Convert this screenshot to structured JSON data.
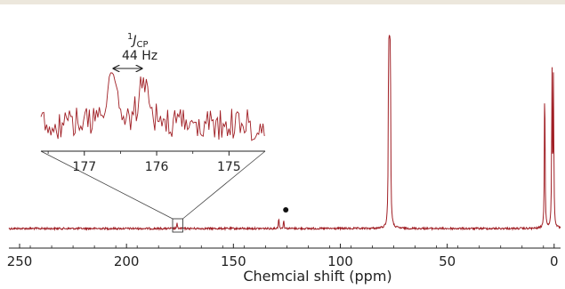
{
  "chart_data": [
    {
      "type": "line",
      "xlabel": "Chemcial shift (ppm)",
      "xlim": [
        255,
        -3
      ],
      "x_ticks": [
        "250",
        "200",
        "150",
        "100",
        "50",
        "0"
      ],
      "x_tick_values": [
        250,
        200,
        150,
        100,
        50,
        0
      ],
      "line_color": "#a01f25",
      "grid": false,
      "series": [
        {
          "peaks": [
            {
              "x": 176.4,
              "height": 0.03
            },
            {
              "x": 128.8,
              "height": 0.07
            },
            {
              "x": 126.5,
              "height": 0.055
            },
            {
              "x": 77.4,
              "height": 1.0
            },
            {
              "x": 77.0,
              "height": 1.0
            },
            {
              "x": 76.6,
              "height": 1.0
            },
            {
              "x": 4.4,
              "height": 0.92
            },
            {
              "x": 1.0,
              "height": 0.95
            },
            {
              "x": 0.3,
              "height": 0.88
            }
          ]
        }
      ],
      "annotations": [
        {
          "type": "marker",
          "symbol": "filled-circle",
          "x": 125.5
        }
      ]
    },
    {
      "type": "line",
      "role": "inset-zoom",
      "xlim": [
        177.6,
        174.5
      ],
      "x_ticks": [
        "177",
        "176",
        "175"
      ],
      "x_tick_values": [
        177,
        176,
        175
      ],
      "zoom_region": [
        177.6,
        174.5
      ],
      "series": [
        {
          "peaks": [
            {
              "x": 176.62,
              "height": 1.0
            },
            {
              "x": 176.18,
              "height": 0.86
            }
          ]
        }
      ],
      "annotation": {
        "label_super": "1",
        "label_main": "J",
        "label_sub": "CP",
        "value_text": "44 Hz",
        "span": [
          176.62,
          176.18
        ]
      }
    }
  ]
}
